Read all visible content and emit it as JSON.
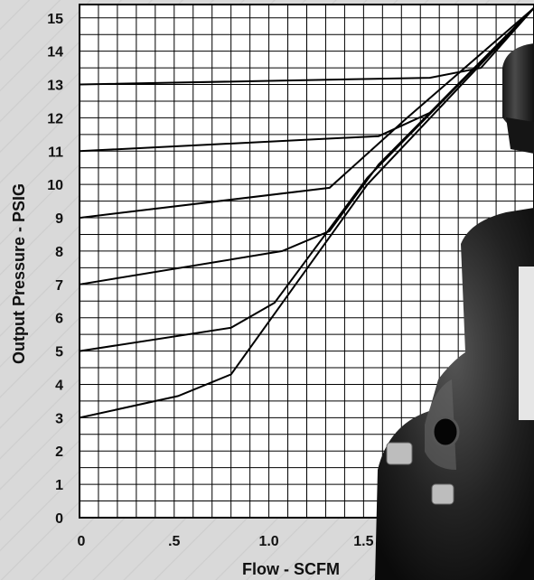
{
  "chart_data": {
    "type": "line",
    "title": "",
    "xlabel": "Flow - SCFM",
    "ylabel": "Output Pressure - PSIG",
    "xlim": [
      0,
      2.4
    ],
    "ylim": [
      0,
      15.4
    ],
    "grid": true,
    "x_ticks": [
      {
        "value": 0,
        "label": "0"
      },
      {
        "value": 0.5,
        "label": ".5"
      },
      {
        "value": 1.0,
        "label": "1.0"
      },
      {
        "value": 1.5,
        "label": "1.5"
      }
    ],
    "y_ticks": [
      {
        "value": 0,
        "label": "0"
      },
      {
        "value": 1,
        "label": "1"
      },
      {
        "value": 2,
        "label": "2"
      },
      {
        "value": 3,
        "label": "3"
      },
      {
        "value": 4,
        "label": "4"
      },
      {
        "value": 5,
        "label": "5"
      },
      {
        "value": 6,
        "label": "6"
      },
      {
        "value": 7,
        "label": "7"
      },
      {
        "value": 8,
        "label": "8"
      },
      {
        "value": 9,
        "label": "9"
      },
      {
        "value": 10,
        "label": "10"
      },
      {
        "value": 11,
        "label": "11"
      },
      {
        "value": 12,
        "label": "12"
      },
      {
        "value": 13,
        "label": "13"
      },
      {
        "value": 14,
        "label": "14"
      },
      {
        "value": 15,
        "label": "15"
      }
    ],
    "series": [
      {
        "points": [
          [
            0,
            3
          ],
          [
            0.52,
            3.65
          ],
          [
            0.8,
            4.3
          ],
          [
            1.04,
            6.2
          ],
          [
            1.52,
            10.0
          ],
          [
            2.4,
            15.3
          ]
        ]
      },
      {
        "points": [
          [
            0,
            5
          ],
          [
            0.8,
            5.7
          ],
          [
            1.03,
            6.45
          ],
          [
            1.52,
            10.2
          ],
          [
            2.4,
            15.3
          ]
        ]
      },
      {
        "points": [
          [
            0,
            7
          ],
          [
            1.07,
            8.0
          ],
          [
            1.32,
            8.6
          ],
          [
            1.58,
            10.6
          ],
          [
            2.4,
            15.3
          ]
        ]
      },
      {
        "points": [
          [
            0,
            9
          ],
          [
            1.32,
            9.9
          ],
          [
            1.72,
            11.95
          ],
          [
            2.4,
            15.3
          ]
        ]
      },
      {
        "points": [
          [
            0,
            11
          ],
          [
            1.58,
            11.45
          ],
          [
            1.85,
            12.15
          ],
          [
            2.4,
            15.3
          ]
        ]
      },
      {
        "points": [
          [
            0,
            13
          ],
          [
            1.85,
            13.2
          ],
          [
            2.12,
            13.5
          ],
          [
            2.4,
            15.3
          ]
        ]
      }
    ],
    "colors": {
      "grid": "#000000",
      "lines": "#000000",
      "plot_bg": "#ffffff"
    }
  }
}
